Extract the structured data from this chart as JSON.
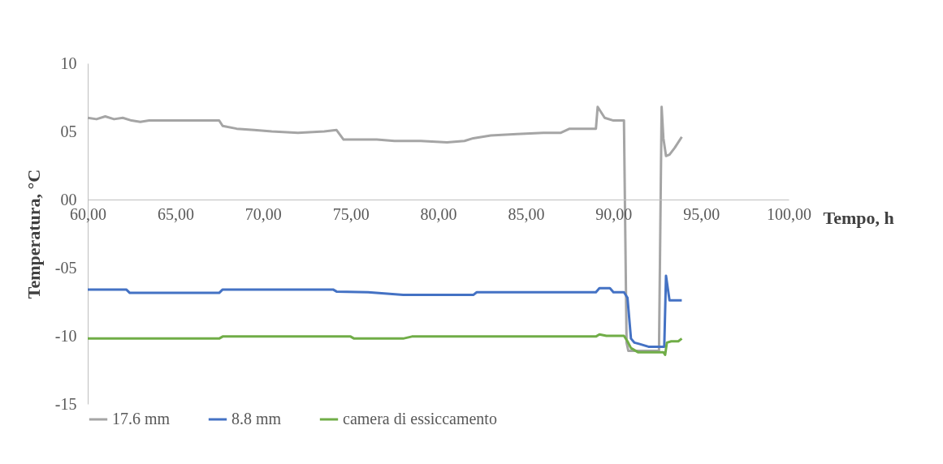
{
  "chart_data": {
    "type": "line",
    "xlabel": "Tempo, h",
    "ylabel": "Temperatura, °C",
    "xlim": [
      60,
      100
    ],
    "xticks": [
      {
        "value": 60,
        "label": "60,00"
      },
      {
        "value": 65,
        "label": "65,00"
      },
      {
        "value": 70,
        "label": "70,00"
      },
      {
        "value": 75,
        "label": "75,00"
      },
      {
        "value": 80,
        "label": "80,00"
      },
      {
        "value": 85,
        "label": "85,00"
      },
      {
        "value": 90,
        "label": "90,00"
      },
      {
        "value": 95,
        "label": "95,00"
      },
      {
        "value": 100,
        "label": "100,00"
      }
    ],
    "ylim": [
      -15,
      10
    ],
    "yticks": [
      10,
      {
        "value": 5,
        "label": "05"
      },
      {
        "value": 0,
        "label": "00"
      },
      {
        "value": -5,
        "label": "-05"
      },
      -10,
      -15
    ],
    "grid": false,
    "legend": "bottom",
    "marker": "none",
    "line_style": "solid",
    "series": [
      {
        "name": "17.6 mm",
        "color": "#a5a5a5",
        "x": [
          60,
          60.5,
          61,
          61.5,
          62,
          62.5,
          63,
          63.5,
          67.5,
          67.7,
          68.5,
          69.5,
          70.5,
          72,
          73.5,
          74.2,
          74.6,
          76.5,
          77.5,
          79,
          80.5,
          81.5,
          82,
          83,
          84.5,
          86,
          87,
          87.5,
          89,
          89.1,
          89.5,
          90,
          90.6,
          90.75,
          90.85,
          91.5,
          92.6,
          92.75,
          92.85,
          93,
          93.2,
          93.5,
          93.9
        ],
        "values": [
          6.0,
          5.9,
          6.1,
          5.9,
          6.0,
          5.8,
          5.7,
          5.8,
          5.8,
          5.4,
          5.2,
          5.1,
          5.0,
          4.9,
          5.0,
          5.1,
          4.4,
          4.4,
          4.3,
          4.3,
          4.2,
          4.3,
          4.5,
          4.7,
          4.8,
          4.9,
          4.9,
          5.2,
          5.2,
          6.8,
          6.0,
          5.8,
          5.8,
          -10.5,
          -11.1,
          -11.1,
          -11.1,
          6.8,
          4.5,
          3.2,
          3.3,
          3.8,
          4.6
        ]
      },
      {
        "name": "8.8 mm",
        "color": "#4472c4",
        "x": [
          60,
          62.2,
          62.4,
          67.5,
          67.7,
          70,
          72,
          74,
          74.2,
          76,
          78,
          80,
          82,
          82.2,
          85,
          89,
          89.2,
          89.8,
          90,
          90.6,
          90.8,
          91,
          91.2,
          91.5,
          92,
          92.8,
          92.9,
          93,
          93.2,
          93.9
        ],
        "values": [
          -6.6,
          -6.6,
          -6.85,
          -6.85,
          -6.6,
          -6.6,
          -6.6,
          -6.6,
          -6.75,
          -6.8,
          -7.0,
          -7.0,
          -7.0,
          -6.8,
          -6.8,
          -6.8,
          -6.5,
          -6.5,
          -6.8,
          -6.8,
          -7.2,
          -10.2,
          -10.5,
          -10.6,
          -10.8,
          -10.8,
          -10.8,
          -5.6,
          -7.4,
          -7.4
        ]
      },
      {
        "name": "camera di essiccamento",
        "color": "#70ad47",
        "x": [
          60,
          62,
          64,
          67.5,
          67.7,
          70,
          75,
          75.2,
          78,
          78.5,
          80,
          85,
          89,
          89.2,
          89.6,
          90.6,
          90.8,
          91,
          91.4,
          92,
          92.85,
          92.95,
          93.05,
          93.3,
          93.7,
          93.9
        ],
        "values": [
          -10.2,
          -10.2,
          -10.2,
          -10.2,
          -10.05,
          -10.05,
          -10.05,
          -10.2,
          -10.2,
          -10.05,
          -10.05,
          -10.05,
          -10.05,
          -9.9,
          -10.0,
          -10.0,
          -10.4,
          -10.9,
          -11.2,
          -11.2,
          -11.2,
          -11.4,
          -10.5,
          -10.4,
          -10.4,
          -10.2
        ]
      }
    ]
  }
}
